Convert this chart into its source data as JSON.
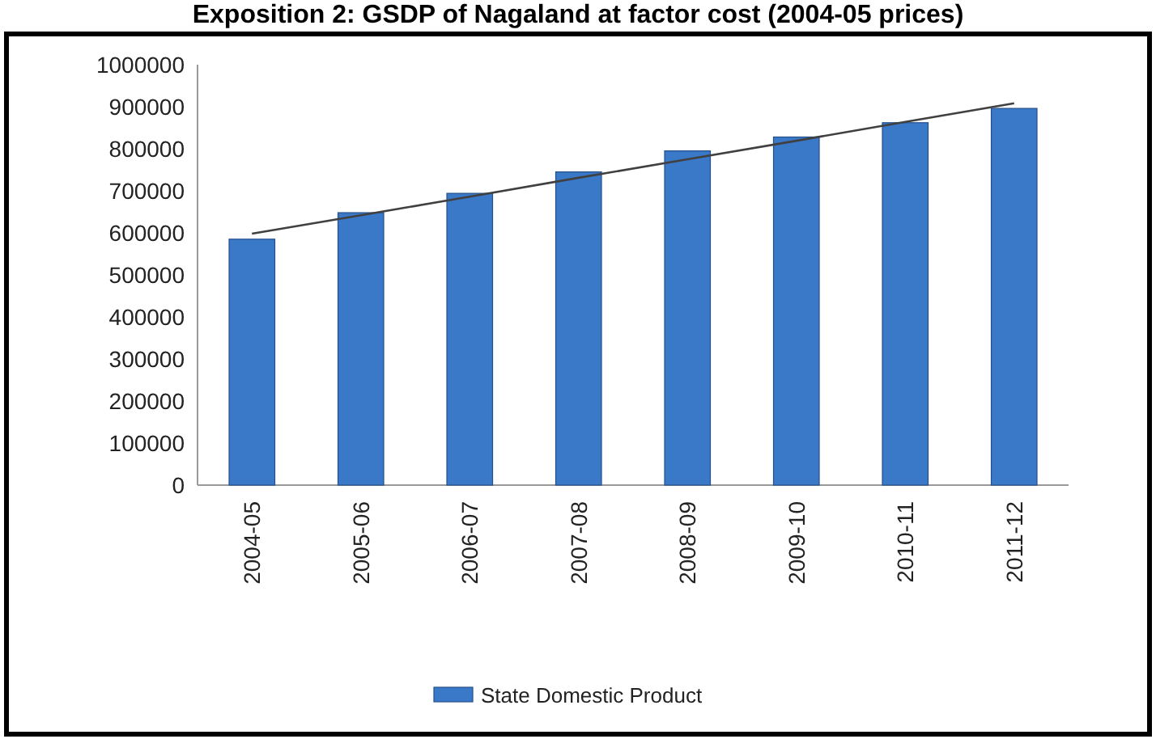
{
  "chart_data": {
    "type": "bar",
    "title": "Exposition 2: GSDP of Nagaland at factor cost (2004-05 prices)",
    "categories": [
      "2004-05",
      "2005-06",
      "2006-07",
      "2007-08",
      "2008-09",
      "2009-10",
      "2010-11",
      "2011-12"
    ],
    "series": [
      {
        "name": "State Domestic Product",
        "color": "#3a78c8",
        "values": [
          585000,
          648000,
          694000,
          745000,
          795000,
          828000,
          862000,
          896000
        ]
      },
      {
        "type": "line",
        "color": "#404040",
        "values": [
          598000,
          642000,
          686000,
          731000,
          775000,
          819000,
          864000,
          908000
        ]
      }
    ],
    "ylim": [
      0,
      1000000
    ],
    "yticks": [
      0,
      100000,
      200000,
      300000,
      400000,
      500000,
      600000,
      700000,
      800000,
      900000,
      1000000
    ],
    "grid": false,
    "legend": "bottom"
  }
}
